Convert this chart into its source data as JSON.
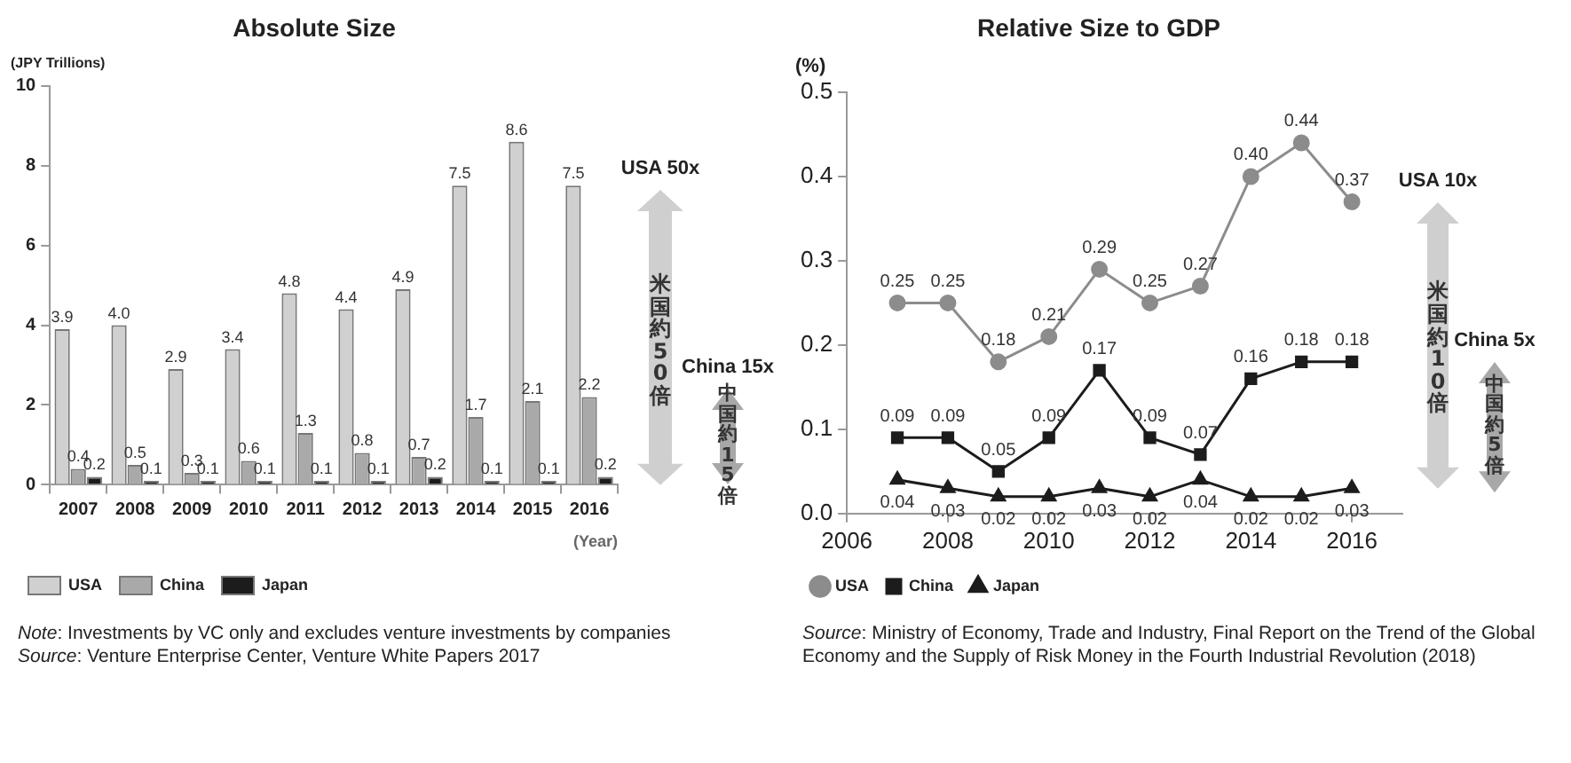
{
  "chart_data": [
    {
      "type": "bar",
      "title": "Absolute Size",
      "ylabel": "(JPY Trillions)",
      "xlabel": "(Year)",
      "categories": [
        "2007",
        "2008",
        "2009",
        "2010",
        "2011",
        "2012",
        "2013",
        "2014",
        "2015",
        "2016"
      ],
      "series": [
        {
          "name": "USA",
          "color": "#d0d0d0",
          "values": [
            3.9,
            4.0,
            2.9,
            3.4,
            4.8,
            4.4,
            4.9,
            7.5,
            8.6,
            7.5
          ],
          "value_labels": [
            "3.9",
            "4.0",
            "2.9",
            "3.4",
            "4.8",
            "4.4",
            "4.9",
            "7.5",
            "8.6",
            "7.5"
          ]
        },
        {
          "name": "China",
          "color": "#a9a9a9",
          "values": [
            0.4,
            0.5,
            0.3,
            0.6,
            1.3,
            0.8,
            0.7,
            1.7,
            2.1,
            2.2
          ],
          "value_labels": [
            "0.4",
            "0.5",
            "0.3",
            "0.6",
            "1.3",
            "0.8",
            "0.7",
            "1.7",
            "2.1",
            "2.2"
          ]
        },
        {
          "name": "Japan",
          "color": "#1c1c1c",
          "values": [
            0.2,
            0.1,
            0.1,
            0.1,
            0.1,
            0.1,
            0.2,
            0.1,
            0.1,
            0.2
          ],
          "value_labels": [
            "0.2",
            "0.1",
            "0.1",
            "0.1",
            "0.1",
            "0.1",
            "0.2",
            "0.1",
            "0.1",
            "0.2"
          ]
        }
      ],
      "ylim": [
        0,
        10
      ],
      "yticks": [
        0,
        2,
        4,
        6,
        8,
        10
      ],
      "grid": false,
      "legend": "bottom",
      "annotations": [
        "USA 50x",
        "米国約50倍",
        "China 15x",
        "中国約15倍",
        "Note: Investments by VC only and excludes venture investments by companies",
        "Source: Venture Enterprise Center, Venture White Papers 2017"
      ]
    },
    {
      "type": "line",
      "title": "Relative Size to GDP",
      "ylabel": "(%)",
      "series": [
        {
          "name": "USA",
          "color": "#8c8c8c",
          "marker": "circle",
          "x": [
            2007,
            2008,
            2009,
            2010,
            2011,
            2012,
            2013,
            2014,
            2015,
            2016
          ],
          "values": [
            0.25,
            0.25,
            0.18,
            0.21,
            0.29,
            0.25,
            0.27,
            0.4,
            0.44,
            0.37
          ],
          "value_labels": [
            "0.25",
            "0.25",
            "0.18",
            "0.21",
            "0.29",
            "0.25",
            "0.27",
            "0.40",
            "0.44",
            "0.37"
          ]
        },
        {
          "name": "China",
          "color": "#1c1c1c",
          "marker": "square",
          "x": [
            2007,
            2008,
            2009,
            2010,
            2011,
            2012,
            2013,
            2014,
            2015,
            2016
          ],
          "values": [
            0.09,
            0.09,
            0.05,
            0.09,
            0.17,
            0.09,
            0.07,
            0.16,
            0.18,
            0.18
          ],
          "value_labels": [
            "0.09",
            "0.09",
            "0.05",
            "0.09",
            "0.17",
            "0.09",
            "0.07",
            "0.16",
            "0.18",
            "0.18"
          ]
        },
        {
          "name": "Japan",
          "color": "#1c1c1c",
          "marker": "triangle",
          "x": [
            2007,
            2008,
            2009,
            2010,
            2011,
            2012,
            2013,
            2014,
            2015,
            2016
          ],
          "values": [
            0.04,
            0.03,
            0.02,
            0.02,
            0.03,
            0.02,
            0.04,
            0.02,
            0.02,
            0.03
          ],
          "value_labels": [
            "0.04",
            "0.03",
            "0.02",
            "0.02",
            "0.03",
            "0.02",
            "0.04",
            "0.02",
            "0.02",
            "0.03"
          ]
        }
      ],
      "xlim": [
        2006,
        2017
      ],
      "xticks": [
        2006,
        2008,
        2010,
        2012,
        2014,
        2016
      ],
      "ylim": [
        0,
        0.5
      ],
      "yticks": [
        {
          "value": 0,
          "label": "0.0"
        },
        0.1,
        0.2,
        0.3,
        0.4,
        0.5
      ],
      "grid": false,
      "legend": "bottom",
      "annotations": [
        "USA 10x",
        "米国約10倍",
        "China 5x",
        "中国約5倍",
        "Source: Ministry of Economy, Trade and Industry, Final Report on the Trend of the Global Economy and the Supply of Risk Money in the Fourth Industrial Revolution (2018)"
      ]
    }
  ]
}
